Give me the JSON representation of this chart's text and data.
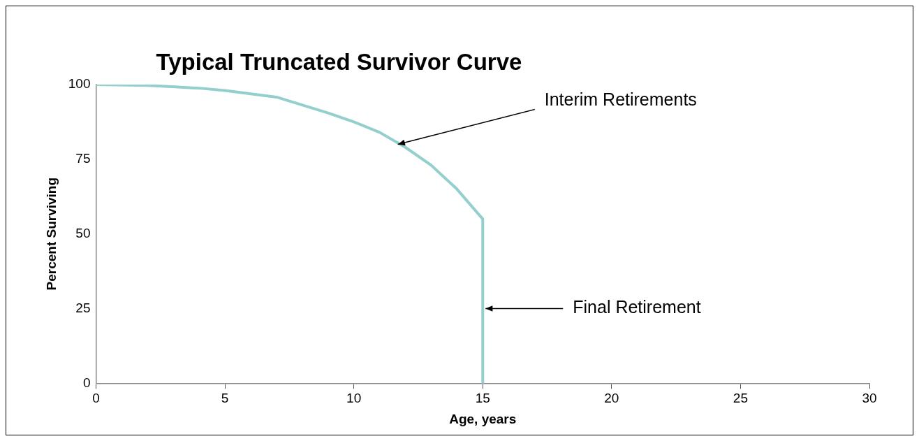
{
  "chart_data": {
    "type": "line",
    "title": "Typical Truncated Survivor Curve",
    "xlabel": "Age, years",
    "ylabel": "Percent Surviving",
    "series": [
      {
        "color": "#93cfcc",
        "x": [
          0,
          2,
          4,
          5,
          7,
          9,
          10,
          11,
          12,
          13,
          14,
          15,
          15
        ],
        "values": [
          100,
          99.7,
          98.8,
          98,
          95.8,
          90.5,
          87.5,
          84,
          79,
          73,
          65,
          55,
          0
        ]
      }
    ],
    "xlim": [
      0,
      30
    ],
    "xticks": [
      0,
      5,
      10,
      15,
      20,
      25,
      30
    ],
    "ylim": [
      0,
      100
    ],
    "yticks": [
      0,
      25,
      50,
      75,
      100
    ],
    "grid": false,
    "legend": false,
    "marker": "none",
    "line_style": "solid",
    "annotations": [
      {
        "text": "Interim Retirements",
        "x": 11.6,
        "y": 80
      },
      {
        "text": "Final Retirement",
        "x": 15,
        "y": 25
      }
    ]
  }
}
